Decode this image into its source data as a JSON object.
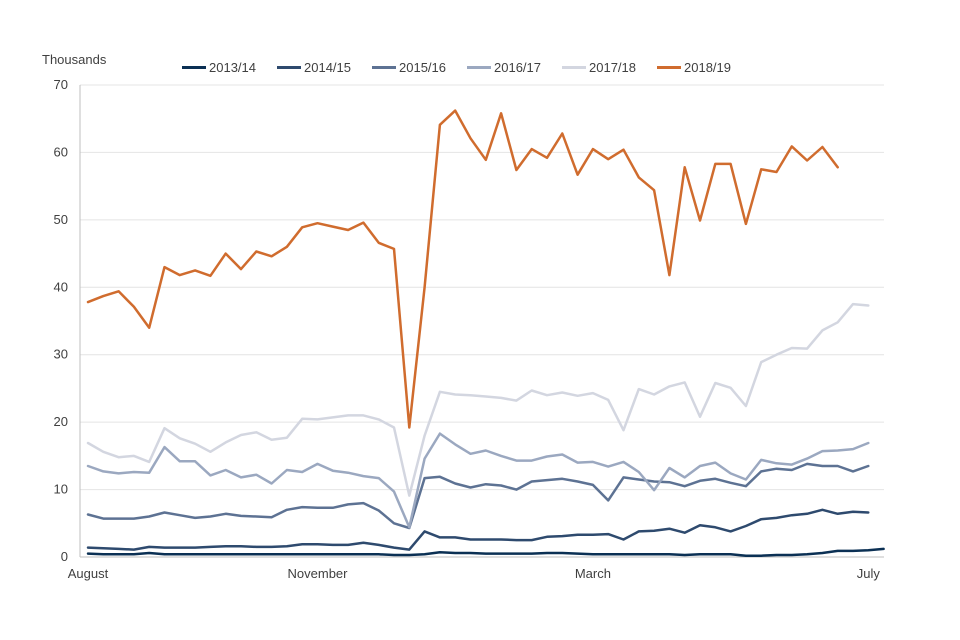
{
  "chart_data": {
    "type": "line",
    "unit_label": "Thousands",
    "title": "",
    "xlabel": "",
    "ylabel": "Thousands",
    "ylim": [
      0,
      70
    ],
    "yticks": [
      0,
      10,
      20,
      30,
      40,
      50,
      60,
      70
    ],
    "x_tick_labels": [
      {
        "label": "August",
        "index": 0
      },
      {
        "label": "November",
        "index": 15
      },
      {
        "label": "March",
        "index": 33
      },
      {
        "label": "July",
        "index": 51
      }
    ],
    "series": [
      {
        "name": "2013/14",
        "color": "#0b3054",
        "values": [
          0.5,
          0.4,
          0.4,
          0.4,
          0.6,
          0.4,
          0.4,
          0.4,
          0.4,
          0.4,
          0.4,
          0.4,
          0.4,
          0.4,
          0.4,
          0.4,
          0.4,
          0.4,
          0.4,
          0.4,
          0.3,
          0.3,
          0.4,
          0.7,
          0.6,
          0.6,
          0.5,
          0.5,
          0.5,
          0.5,
          0.6,
          0.6,
          0.5,
          0.4,
          0.4,
          0.4,
          0.4,
          0.4,
          0.4,
          0.3,
          0.4,
          0.4,
          0.4,
          0.2,
          0.2,
          0.3,
          0.3,
          0.4,
          0.6,
          0.9,
          0.9,
          1.0,
          1.2
        ]
      },
      {
        "name": "2014/15",
        "color": "#2e4a6e",
        "values": [
          1.4,
          1.3,
          1.2,
          1.1,
          1.5,
          1.4,
          1.4,
          1.4,
          1.5,
          1.6,
          1.6,
          1.5,
          1.5,
          1.6,
          1.9,
          1.9,
          1.8,
          1.8,
          2.1,
          1.8,
          1.4,
          1.1,
          3.8,
          2.9,
          2.9,
          2.6,
          2.6,
          2.6,
          2.5,
          2.5,
          3.0,
          3.1,
          3.3,
          3.3,
          3.4,
          2.6,
          3.8,
          3.9,
          4.2,
          3.6,
          4.7,
          4.4,
          3.8,
          4.6,
          5.6,
          5.8,
          6.2,
          6.4,
          7.0,
          6.4,
          6.7,
          6.6
        ]
      },
      {
        "name": "2015/16",
        "color": "#5d7293",
        "values": [
          6.3,
          5.7,
          5.7,
          5.7,
          6.0,
          6.6,
          6.2,
          5.8,
          6.0,
          6.4,
          6.1,
          6.0,
          5.9,
          7.0,
          7.4,
          7.3,
          7.3,
          7.8,
          8.0,
          6.9,
          5.0,
          4.3,
          11.7,
          11.9,
          10.9,
          10.3,
          10.8,
          10.6,
          10.0,
          11.2,
          11.4,
          11.6,
          11.2,
          10.7,
          8.4,
          11.8,
          11.5,
          11.2,
          11.1,
          10.5,
          11.3,
          11.6,
          11.0,
          10.5,
          12.7,
          13.1,
          12.9,
          13.8,
          13.5,
          13.5,
          12.7,
          13.5
        ]
      },
      {
        "name": "2016/17",
        "color": "#9ba8c0",
        "values": [
          13.5,
          12.7,
          12.4,
          12.6,
          12.5,
          16.3,
          14.2,
          14.2,
          12.1,
          12.9,
          11.8,
          12.2,
          10.9,
          12.9,
          12.6,
          13.8,
          12.8,
          12.5,
          12.0,
          11.7,
          9.7,
          4.4,
          14.6,
          18.3,
          16.7,
          15.3,
          15.8,
          15.0,
          14.3,
          14.3,
          14.9,
          15.2,
          14.0,
          14.1,
          13.4,
          14.1,
          12.6,
          9.9,
          13.2,
          11.8,
          13.5,
          14.0,
          12.4,
          11.5,
          14.4,
          13.9,
          13.7,
          14.6,
          15.7,
          15.8,
          16.0,
          16.9
        ]
      },
      {
        "name": "2017/18",
        "color": "#d3d6e0",
        "values": [
          16.9,
          15.6,
          14.8,
          15.0,
          14.1,
          19.1,
          17.6,
          16.8,
          15.6,
          17.0,
          18.1,
          18.5,
          17.4,
          17.7,
          20.5,
          20.4,
          20.7,
          21.0,
          21.0,
          20.4,
          19.2,
          9.1,
          18.0,
          24.5,
          24.1,
          24.0,
          23.8,
          23.6,
          23.2,
          24.7,
          24.0,
          24.4,
          23.9,
          24.3,
          23.3,
          18.8,
          24.9,
          24.1,
          25.3,
          25.9,
          20.8,
          25.8,
          25.1,
          22.4,
          28.9,
          30.0,
          31.0,
          30.9,
          33.6,
          34.8,
          37.5,
          37.3
        ]
      },
      {
        "name": "2018/19",
        "color": "#d06c2e",
        "values": [
          37.8,
          38.7,
          39.4,
          37.1,
          34.0,
          43.0,
          41.8,
          42.5,
          41.7,
          45.0,
          42.7,
          45.3,
          44.6,
          46.0,
          48.9,
          49.5,
          49.0,
          48.5,
          49.6,
          46.6,
          45.7,
          19.2,
          40.0,
          64.1,
          66.2,
          62.1,
          58.9,
          65.8,
          57.4,
          60.5,
          59.2,
          62.8,
          56.7,
          60.5,
          59.0,
          60.4,
          56.3,
          54.4,
          41.8,
          57.8,
          49.9,
          58.3,
          58.3,
          49.4,
          57.5,
          57.1,
          60.9,
          58.8,
          60.8,
          57.8
        ]
      }
    ]
  }
}
